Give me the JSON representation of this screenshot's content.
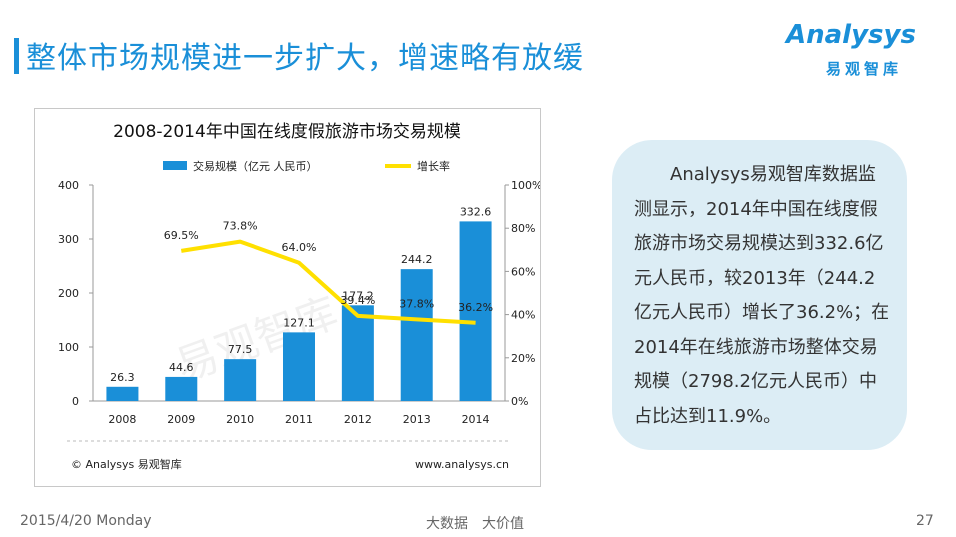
{
  "slide": {
    "title": "整体市场规模进一步扩大，增速略有放缓",
    "date": "2015/4/20 Monday",
    "slogan": "大数据　大价值",
    "page_number": "27"
  },
  "logo": {
    "brand": "Analysys",
    "sub": "易观智库"
  },
  "chart_data": {
    "type": "bar",
    "title": "2008-2014年中国在线度假旅游市场交易规模",
    "categories": [
      "2008",
      "2009",
      "2010",
      "2011",
      "2012",
      "2013",
      "2014"
    ],
    "series": [
      {
        "name": "交易规模（亿元 人民币）",
        "type": "bar",
        "axis": "left",
        "color": "#1a8fd8",
        "values": [
          26.3,
          44.6,
          77.5,
          127.1,
          177.2,
          244.2,
          332.6
        ],
        "labels": [
          "26.3",
          "44.6",
          "77.5",
          "127.1",
          "177.2",
          "244.2",
          "332.6"
        ]
      },
      {
        "name": "增长率",
        "type": "line",
        "axis": "right",
        "color": "#ffe000",
        "values": [
          null,
          69.5,
          73.8,
          64.0,
          39.4,
          37.8,
          36.2
        ],
        "labels": [
          "",
          "69.5%",
          "73.8%",
          "64.0%",
          "39.4%",
          "37.8%",
          "36.2%"
        ]
      }
    ],
    "ylim": [
      0,
      400
    ],
    "y_ticks": [
      "0",
      "100",
      "200",
      "300",
      "400"
    ],
    "y2lim": [
      0,
      100
    ],
    "y2_ticks": [
      "0%",
      "20%",
      "40%",
      "60%",
      "80%",
      "100%"
    ],
    "grid": false,
    "legend": "top",
    "source": "© Analysys 易观智库",
    "website": "www.analysys.cn",
    "watermark": "易观智库"
  },
  "info": {
    "text": "Analysys易观智库数据监测显示，2014年中国在线度假旅游市场交易规模达到332.6亿元人民币，较2013年（244.2亿元人民币）增长了36.2%；在2014年在线旅游市场整体交易规模（2798.2亿元人民币）中占比达到11.9%。"
  }
}
